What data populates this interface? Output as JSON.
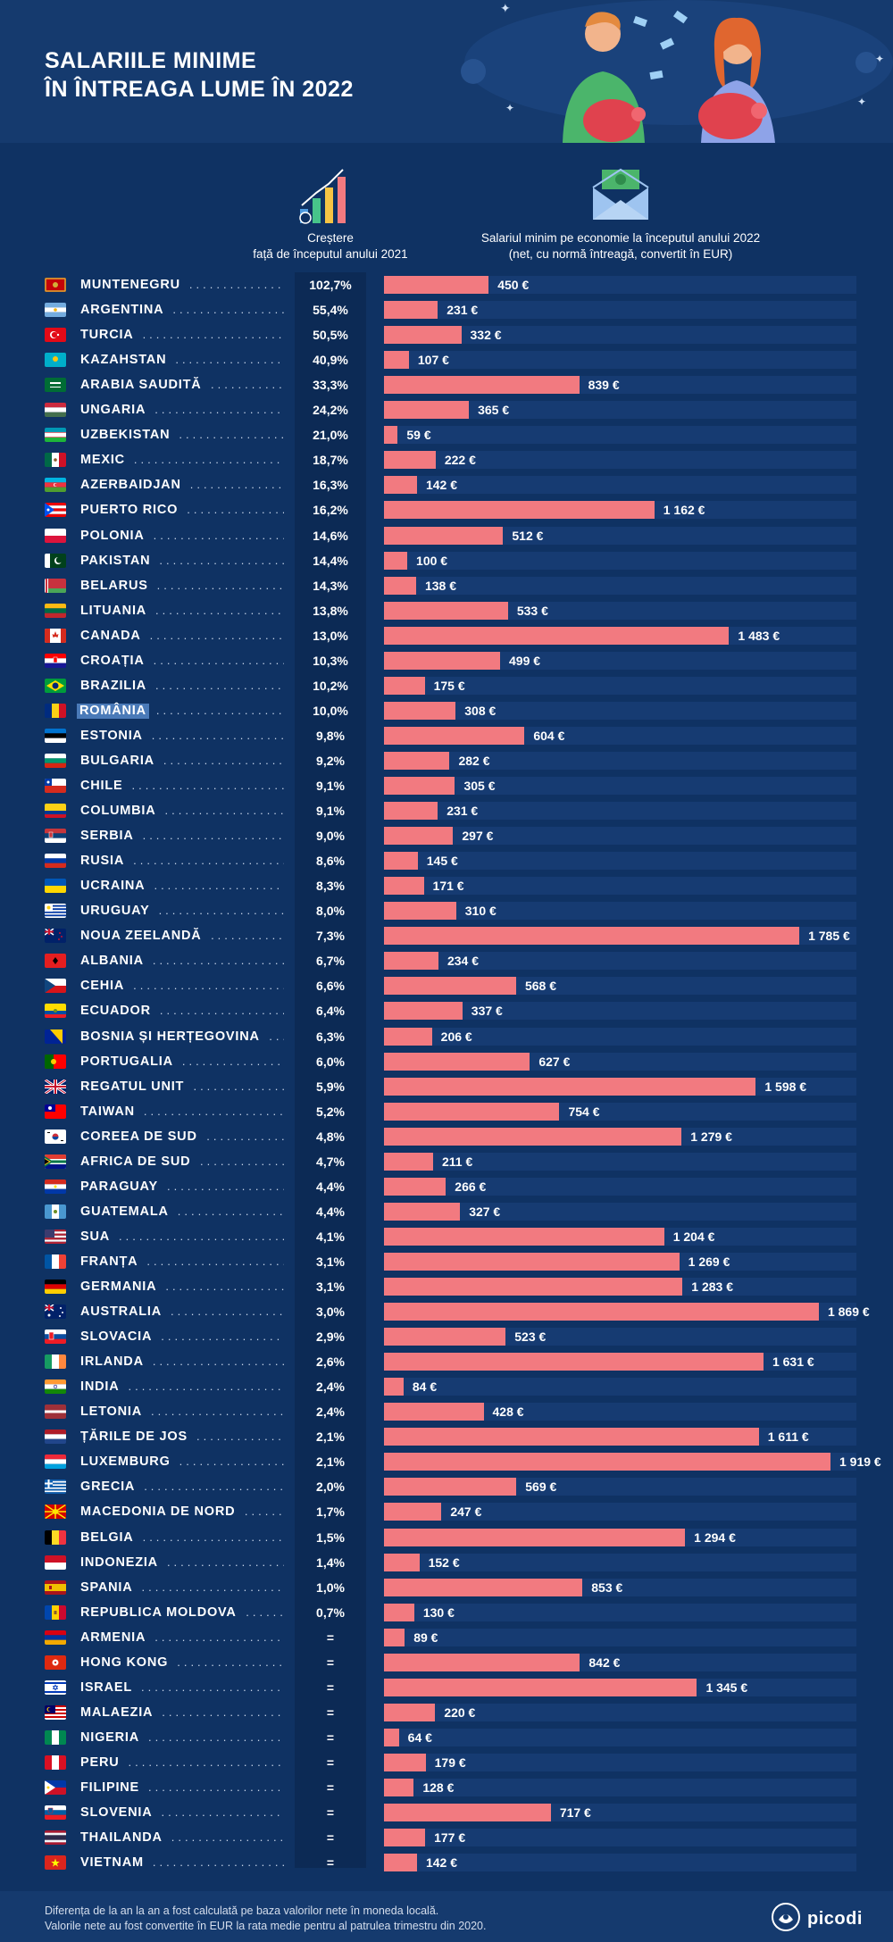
{
  "header": {
    "title_line1": "SALARIILE MINIME",
    "title_line2": "ÎN ÎNTREAGA LUME ÎN 2022"
  },
  "columns": {
    "growth_line1": "Creștere",
    "growth_line2": "față de începutul anului 2021",
    "salary_line1": "Salariul minim pe economie la începutul anului 2022",
    "salary_line2": "(net, cu normă întreagă, convertit în EUR)"
  },
  "footer": {
    "note1": "Diferența de la an la an a fost calculată pe baza valorilor nete în moneda locală.",
    "note2": "Valorile nete au fost convertite în EUR la rata medie pentru al patrulea trimestru din 2020.",
    "logo": "picodi"
  },
  "colors": {
    "background": "#0f3263",
    "bar": "#f27a80",
    "bar_track": "#163b72",
    "highlight": "#4a7ab8"
  },
  "chart_data": {
    "type": "bar",
    "orientation": "horizontal",
    "value_unit": "€",
    "highlight": "ROMÂNIA",
    "rows": [
      {
        "country": "MUNTENEGRU",
        "growth": "102,7%",
        "value": 450,
        "label": "450 €",
        "flag": "montenegro-flag"
      },
      {
        "country": "ARGENTINA",
        "growth": "55,4%",
        "value": 231,
        "label": "231 €",
        "flag": "argentina-flag"
      },
      {
        "country": "TURCIA",
        "growth": "50,5%",
        "value": 332,
        "label": "332 €",
        "flag": "turkey-flag"
      },
      {
        "country": "KAZAHSTAN",
        "growth": "40,9%",
        "value": 107,
        "label": "107 €",
        "flag": "kazakhstan-flag"
      },
      {
        "country": "ARABIA SAUDITĂ",
        "growth": "33,3%",
        "value": 839,
        "label": "839 €",
        "flag": "saudi-arabia-flag"
      },
      {
        "country": "UNGARIA",
        "growth": "24,2%",
        "value": 365,
        "label": "365 €",
        "flag": "hungary-flag"
      },
      {
        "country": "UZBEKISTAN",
        "growth": "21,0%",
        "value": 59,
        "label": "59 €",
        "flag": "uzbekistan-flag"
      },
      {
        "country": "MEXIC",
        "growth": "18,7%",
        "value": 222,
        "label": "222 €",
        "flag": "mexico-flag"
      },
      {
        "country": "AZERBAIDJAN",
        "growth": "16,3%",
        "value": 142,
        "label": "142 €",
        "flag": "azerbaijan-flag"
      },
      {
        "country": "PUERTO RICO",
        "growth": "16,2%",
        "value": 1162,
        "label": "1 162 €",
        "flag": "puerto-rico-flag"
      },
      {
        "country": "POLONIA",
        "growth": "14,6%",
        "value": 512,
        "label": "512 €",
        "flag": "poland-flag"
      },
      {
        "country": "PAKISTAN",
        "growth": "14,4%",
        "value": 100,
        "label": "100 €",
        "flag": "pakistan-flag"
      },
      {
        "country": "BELARUS",
        "growth": "14,3%",
        "value": 138,
        "label": "138 €",
        "flag": "belarus-flag"
      },
      {
        "country": "LITUANIA",
        "growth": "13,8%",
        "value": 533,
        "label": "533 €",
        "flag": "lithuania-flag"
      },
      {
        "country": "CANADA",
        "growth": "13,0%",
        "value": 1483,
        "label": "1 483 €",
        "flag": "canada-flag"
      },
      {
        "country": "CROAȚIA",
        "growth": "10,3%",
        "value": 499,
        "label": "499 €",
        "flag": "croatia-flag"
      },
      {
        "country": "BRAZILIA",
        "growth": "10,2%",
        "value": 175,
        "label": "175 €",
        "flag": "brazil-flag"
      },
      {
        "country": "ROMÂNIA",
        "growth": "10,0%",
        "value": 308,
        "label": "308 €",
        "flag": "romania-flag"
      },
      {
        "country": "ESTONIA",
        "growth": "9,8%",
        "value": 604,
        "label": "604 €",
        "flag": "estonia-flag"
      },
      {
        "country": "BULGARIA",
        "growth": "9,2%",
        "value": 282,
        "label": "282 €",
        "flag": "bulgaria-flag"
      },
      {
        "country": "CHILE",
        "growth": "9,1%",
        "value": 305,
        "label": "305 €",
        "flag": "chile-flag"
      },
      {
        "country": "COLUMBIA",
        "growth": "9,1%",
        "value": 231,
        "label": "231 €",
        "flag": "colombia-flag"
      },
      {
        "country": "SERBIA",
        "growth": "9,0%",
        "value": 297,
        "label": "297 €",
        "flag": "serbia-flag"
      },
      {
        "country": "RUSIA",
        "growth": "8,6%",
        "value": 145,
        "label": "145 €",
        "flag": "russia-flag"
      },
      {
        "country": "UCRAINA",
        "growth": "8,3%",
        "value": 171,
        "label": "171 €",
        "flag": "ukraine-flag"
      },
      {
        "country": "URUGUAY",
        "growth": "8,0%",
        "value": 310,
        "label": "310 €",
        "flag": "uruguay-flag"
      },
      {
        "country": "NOUA ZEELANDĂ",
        "growth": "7,3%",
        "value": 1785,
        "label": "1 785 €",
        "flag": "new-zealand-flag"
      },
      {
        "country": "ALBANIA",
        "growth": "6,7%",
        "value": 234,
        "label": "234 €",
        "flag": "albania-flag"
      },
      {
        "country": "CEHIA",
        "growth": "6,6%",
        "value": 568,
        "label": "568 €",
        "flag": "czechia-flag"
      },
      {
        "country": "ECUADOR",
        "growth": "6,4%",
        "value": 337,
        "label": "337 €",
        "flag": "ecuador-flag"
      },
      {
        "country": "BOSNIA ȘI HERȚEGOVINA",
        "growth": "6,3%",
        "value": 206,
        "label": "206 €",
        "flag": "bosnia-flag"
      },
      {
        "country": "PORTUGALIA",
        "growth": "6,0%",
        "value": 627,
        "label": "627 €",
        "flag": "portugal-flag"
      },
      {
        "country": "REGATUL UNIT",
        "growth": "5,9%",
        "value": 1598,
        "label": "1 598 €",
        "flag": "uk-flag"
      },
      {
        "country": "TAIWAN",
        "growth": "5,2%",
        "value": 754,
        "label": "754 €",
        "flag": "taiwan-flag"
      },
      {
        "country": "COREEA DE SUD",
        "growth": "4,8%",
        "value": 1279,
        "label": "1 279 €",
        "flag": "south-korea-flag"
      },
      {
        "country": "AFRICA DE SUD",
        "growth": "4,7%",
        "value": 211,
        "label": "211 €",
        "flag": "south-africa-flag"
      },
      {
        "country": "PARAGUAY",
        "growth": "4,4%",
        "value": 266,
        "label": "266 €",
        "flag": "paraguay-flag"
      },
      {
        "country": "GUATEMALA",
        "growth": "4,4%",
        "value": 327,
        "label": "327 €",
        "flag": "guatemala-flag"
      },
      {
        "country": "SUA",
        "growth": "4,1%",
        "value": 1204,
        "label": "1 204 €",
        "flag": "usa-flag"
      },
      {
        "country": "FRANȚA",
        "growth": "3,1%",
        "value": 1269,
        "label": "1 269 €",
        "flag": "france-flag"
      },
      {
        "country": "GERMANIA",
        "growth": "3,1%",
        "value": 1283,
        "label": "1 283 €",
        "flag": "germany-flag"
      },
      {
        "country": "AUSTRALIA",
        "growth": "3,0%",
        "value": 1869,
        "label": "1 869 €",
        "flag": "australia-flag"
      },
      {
        "country": "SLOVACIA",
        "growth": "2,9%",
        "value": 523,
        "label": "523 €",
        "flag": "slovakia-flag"
      },
      {
        "country": "IRLANDA",
        "growth": "2,6%",
        "value": 1631,
        "label": "1 631 €",
        "flag": "ireland-flag"
      },
      {
        "country": "INDIA",
        "growth": "2,4%",
        "value": 84,
        "label": "84 €",
        "flag": "india-flag"
      },
      {
        "country": "LETONIA",
        "growth": "2,4%",
        "value": 428,
        "label": "428 €",
        "flag": "latvia-flag"
      },
      {
        "country": "ȚĂRILE DE JOS",
        "growth": "2,1%",
        "value": 1611,
        "label": "1 611 €",
        "flag": "netherlands-flag"
      },
      {
        "country": "LUXEMBURG",
        "growth": "2,1%",
        "value": 1919,
        "label": "1 919 €",
        "flag": "luxembourg-flag"
      },
      {
        "country": "GRECIA",
        "growth": "2,0%",
        "value": 569,
        "label": "569 €",
        "flag": "greece-flag"
      },
      {
        "country": "MACEDONIA DE NORD",
        "growth": "1,7%",
        "value": 247,
        "label": "247 €",
        "flag": "north-macedonia-flag"
      },
      {
        "country": "BELGIA",
        "growth": "1,5%",
        "value": 1294,
        "label": "1 294 €",
        "flag": "belgium-flag"
      },
      {
        "country": "INDONEZIA",
        "growth": "1,4%",
        "value": 152,
        "label": "152 €",
        "flag": "indonesia-flag"
      },
      {
        "country": "SPANIA",
        "growth": "1,0%",
        "value": 853,
        "label": "853 €",
        "flag": "spain-flag"
      },
      {
        "country": "REPUBLICA MOLDOVA",
        "growth": "0,7%",
        "value": 130,
        "label": "130 €",
        "flag": "moldova-flag"
      },
      {
        "country": "ARMENIA",
        "growth": "=",
        "value": 89,
        "label": "89 €",
        "flag": "armenia-flag"
      },
      {
        "country": "HONG KONG",
        "growth": "=",
        "value": 842,
        "label": "842 €",
        "flag": "hong-kong-flag"
      },
      {
        "country": "ISRAEL",
        "growth": "=",
        "value": 1345,
        "label": "1 345 €",
        "flag": "israel-flag"
      },
      {
        "country": "MALAEZIA",
        "growth": "=",
        "value": 220,
        "label": "220 €",
        "flag": "malaysia-flag"
      },
      {
        "country": "NIGERIA",
        "growth": "=",
        "value": 64,
        "label": "64 €",
        "flag": "nigeria-flag"
      },
      {
        "country": "PERU",
        "growth": "=",
        "value": 179,
        "label": "179 €",
        "flag": "peru-flag"
      },
      {
        "country": "FILIPINE",
        "growth": "=",
        "value": 128,
        "label": "128 €",
        "flag": "philippines-flag"
      },
      {
        "country": "SLOVENIA",
        "growth": "=",
        "value": 717,
        "label": "717 €",
        "flag": "slovenia-flag"
      },
      {
        "country": "THAILANDA",
        "growth": "=",
        "value": 177,
        "label": "177 €",
        "flag": "thailand-flag"
      },
      {
        "country": "VIETNAM",
        "growth": "=",
        "value": 142,
        "label": "142 €",
        "flag": "vietnam-flag"
      }
    ]
  }
}
